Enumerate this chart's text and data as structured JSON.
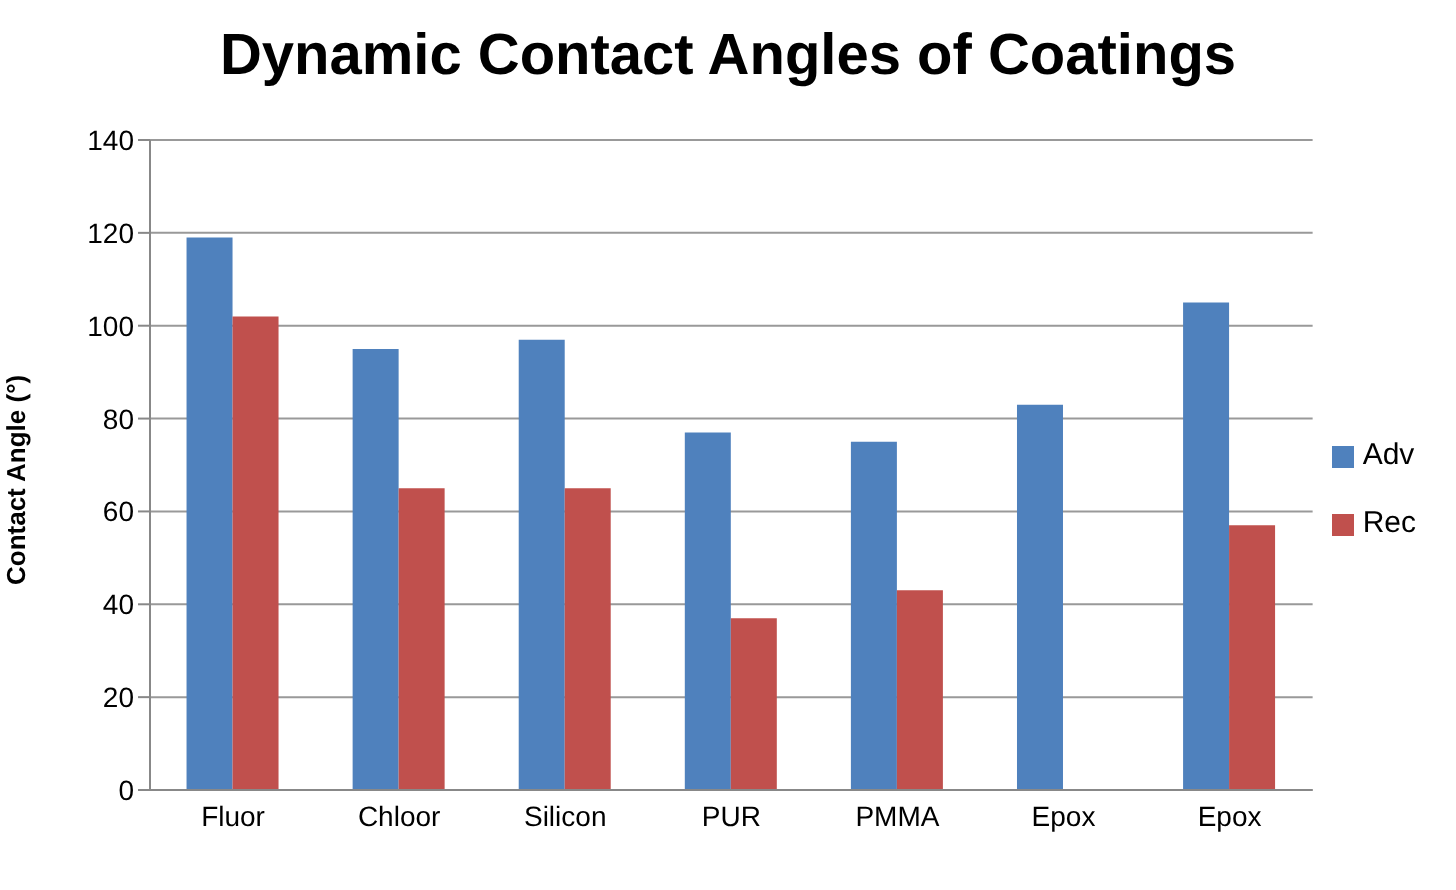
{
  "chart_data": {
    "type": "bar",
    "title": "Dynamic Contact Angles of Coatings",
    "ylabel": "Contact Angle (°)",
    "categories": [
      "Fluor",
      "Chloor",
      "Silicon",
      "PUR",
      "PMMA",
      "Epox",
      "Epox"
    ],
    "series": [
      {
        "name": "Adv",
        "color": "#4f81bd",
        "values": [
          119,
          95,
          97,
          77,
          75,
          83,
          105
        ]
      },
      {
        "name": "Rec",
        "color": "#c0504d",
        "values": [
          102,
          65,
          65,
          37,
          43,
          null,
          57
        ]
      }
    ],
    "ylim": [
      0,
      140
    ],
    "yticks": [
      0,
      20,
      40,
      60,
      80,
      100,
      120,
      140
    ],
    "grid": "y",
    "legend": "right"
  }
}
